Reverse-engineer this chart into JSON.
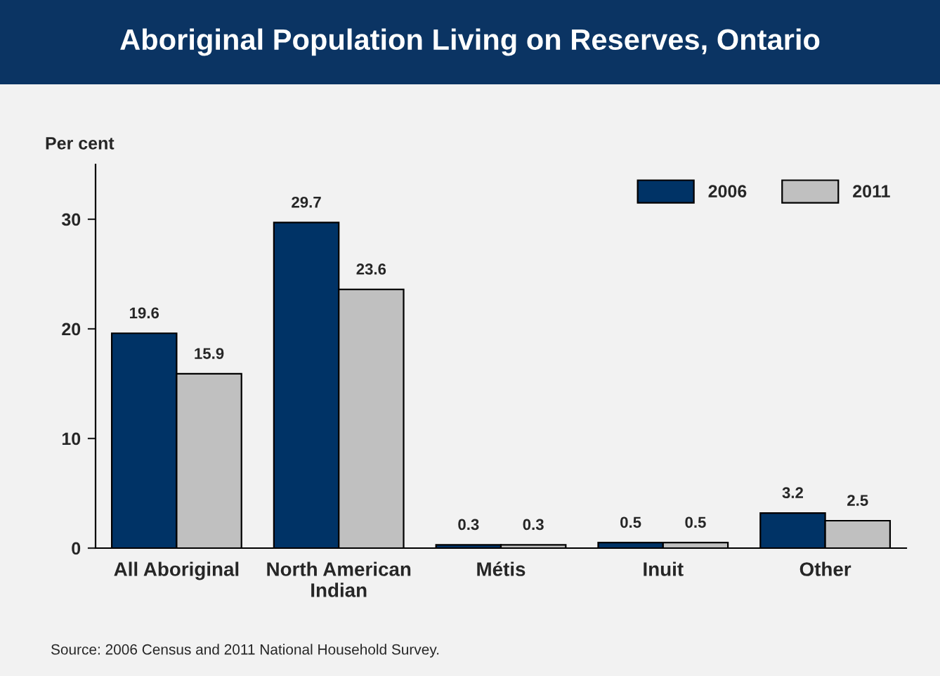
{
  "chart_data": {
    "type": "bar",
    "title": "Aboriginal Population Living on Reserves, Ontario",
    "ylabel": "Per cent",
    "categories": [
      "All Aboriginal",
      "North American\nIndian",
      "Métis",
      "Inuit",
      "Other"
    ],
    "series": [
      {
        "name": "2006",
        "color": "#003366",
        "values": [
          19.6,
          29.7,
          0.3,
          0.5,
          3.2
        ]
      },
      {
        "name": "2011",
        "color": "#c0c0c0",
        "values": [
          15.9,
          23.6,
          0.3,
          0.5,
          2.5
        ]
      }
    ],
    "ylim": [
      0,
      35
    ],
    "yticks": [
      0,
      10,
      20,
      30
    ],
    "grid": false,
    "legend": "top right",
    "data_labels": true,
    "annotations": [
      "Source: 2006 Census and 2011 National Household Survey."
    ]
  }
}
